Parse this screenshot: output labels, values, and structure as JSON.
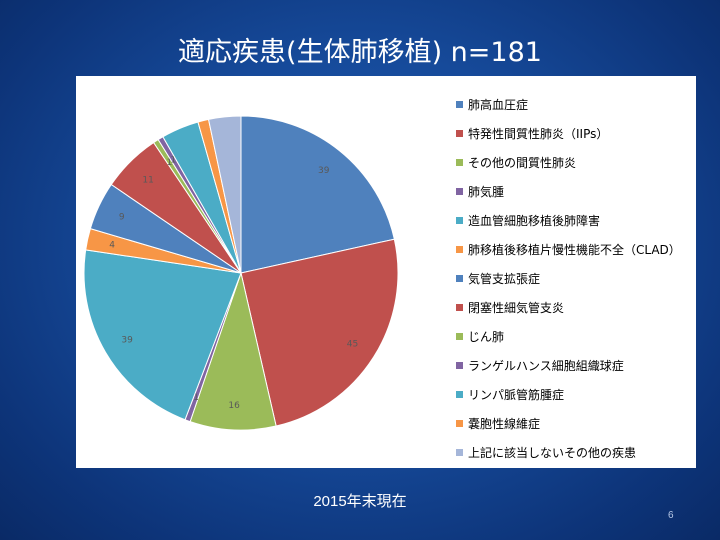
{
  "slide": {
    "title": "適応疾患(生体肺移植) n=181",
    "footnote": "2015年末現在",
    "page_number": "6"
  },
  "chart_data": {
    "type": "pie",
    "title": "",
    "total": 181,
    "legend_position": "right",
    "categories": [
      "肺高血圧症",
      "特発性間質性肺炎（IIPs）",
      "その他の間質性肺炎",
      "肺気腫",
      "造血管細胞移植後肺障害",
      "肺移植後移植片慢性機能不全（CLAD）",
      "気管支拡張症",
      "閉塞性細気管支炎",
      "じん肺",
      "ランゲルハンス細胞組織球症",
      "リンパ脈管筋腫症",
      "嚢胞性線維症",
      "上記に該当しないその他の疾患"
    ],
    "values": [
      39,
      45,
      16,
      1,
      39,
      4,
      9,
      11,
      1,
      1,
      7,
      2,
      6
    ],
    "data_labels": [
      "39",
      "45",
      "16",
      "1",
      "39",
      "4",
      "9",
      "11",
      "1",
      "1",
      "",
      "",
      ""
    ],
    "colors": [
      "#4f81bd",
      "#c0504d",
      "#9bbb59",
      "#8064a2",
      "#4bacc6",
      "#f79646",
      "#4f81bd",
      "#c0504d",
      "#9bbb59",
      "#8064a2",
      "#4bacc6",
      "#f79646",
      "#a5b6d9"
    ]
  }
}
